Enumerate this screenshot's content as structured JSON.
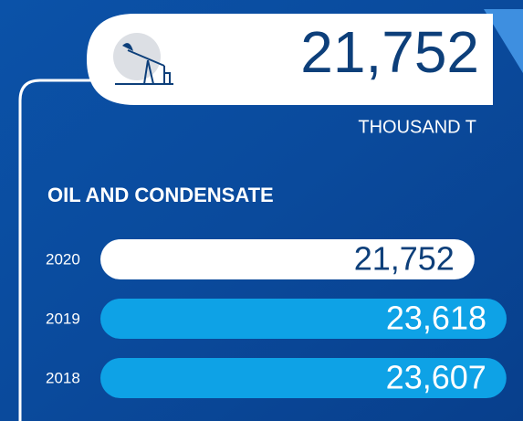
{
  "header": {
    "value": "21,752",
    "unit": "THOUSAND T"
  },
  "chart_data": {
    "type": "bar",
    "orientation": "horizontal",
    "title": "OIL AND CONDENSATE",
    "categories": [
      "2020",
      "2019",
      "2018"
    ],
    "values": [
      21752,
      23618,
      23607
    ],
    "value_labels": [
      "21,752",
      "23,618",
      "23,607"
    ],
    "colors": [
      "#ffffff",
      "#0ea2e6",
      "#0ea2e6"
    ],
    "label_colors": [
      "#0d3f7a",
      "#ffffff",
      "#ffffff"
    ]
  }
}
